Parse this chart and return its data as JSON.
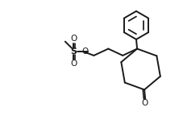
{
  "bg_color": "#ffffff",
  "line_color": "#1a1a1a",
  "lw": 1.4,
  "figsize": [
    2.28,
    1.54
  ],
  "dpi": 100,
  "xlim": [
    0,
    10
  ],
  "ylim": [
    0,
    6.8
  ]
}
